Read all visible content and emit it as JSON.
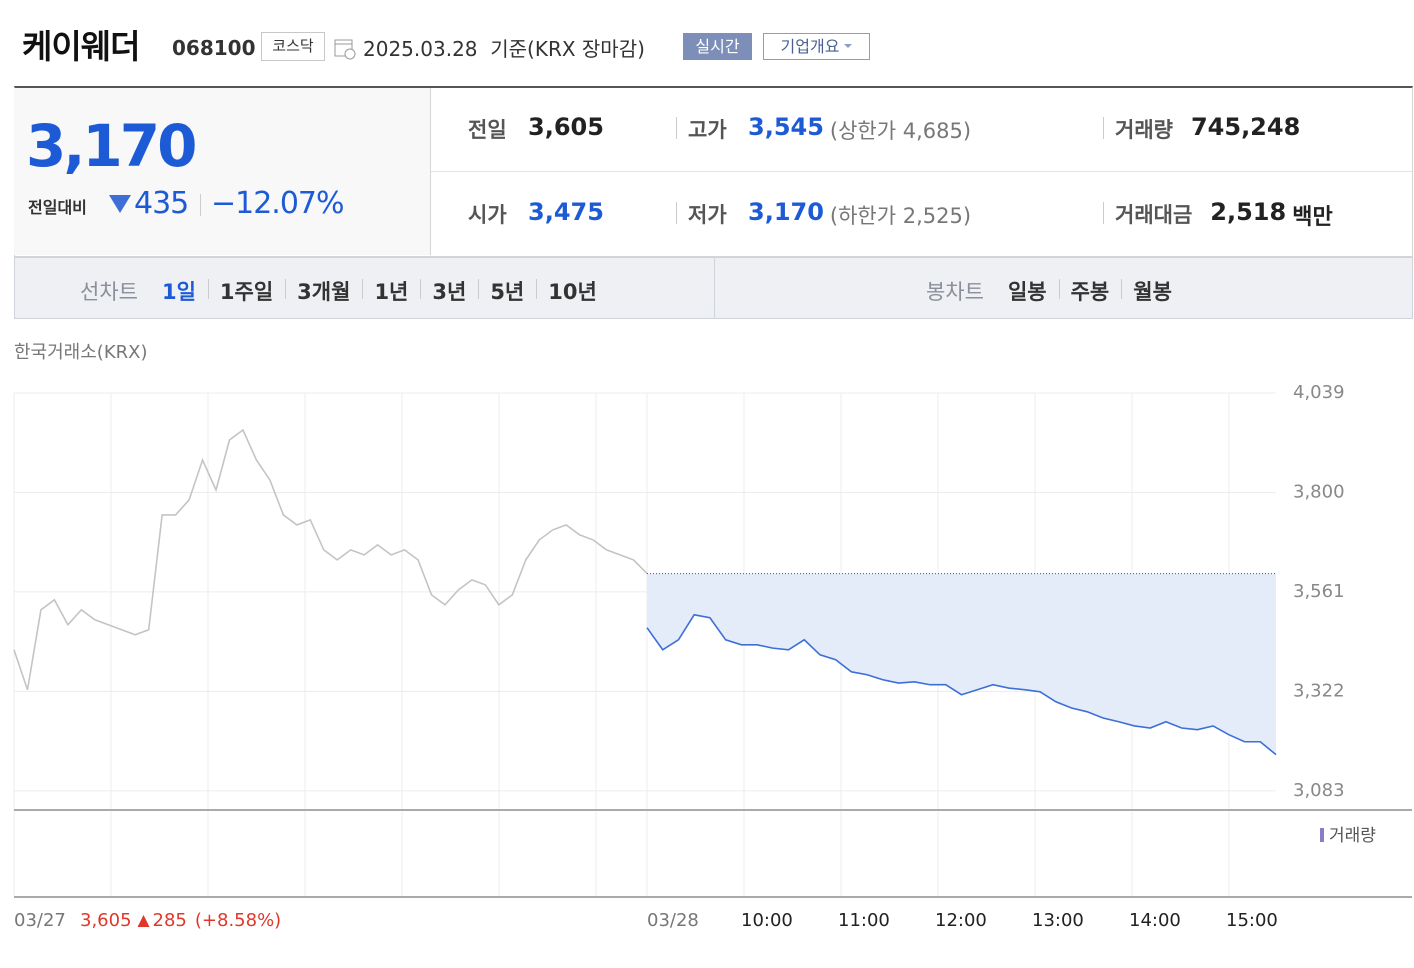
{
  "header": {
    "name": "케이웨더",
    "code": "068100",
    "market": "코스닥",
    "date": "2025.03.28",
    "basis": "기준(KRX 장마감)",
    "realtime": "실시간",
    "company": "기업개요"
  },
  "quote": {
    "price": "3,170",
    "change_label": "전일대비",
    "change": "435",
    "change_pct": "−12.07%",
    "stats": [
      {
        "label": "전일",
        "value": "3,605"
      },
      {
        "label": "고가",
        "value": "3,545",
        "limit": "(상한가 4,685)"
      },
      {
        "label": "거래량",
        "value": "745,248"
      },
      {
        "label": "시가",
        "value": "3,475"
      },
      {
        "label": "저가",
        "value": "3,170",
        "limit": "(하한가 2,525)"
      },
      {
        "label": "거래대금",
        "value": "2,518",
        "unit": "백만"
      }
    ]
  },
  "tabs": {
    "line_label": "선차트",
    "line": [
      "1일",
      "1주일",
      "3개월",
      "1년",
      "3년",
      "5년",
      "10년"
    ],
    "candle_label": "봉차트",
    "candle": [
      "일봉",
      "주봉",
      "월봉"
    ]
  },
  "chart_data": {
    "type": "line",
    "source": "한국거래소(KRX)",
    "volume_label": "거래량",
    "series": [
      {
        "name": "03/27",
        "color": "#c4c4c4",
        "values": [
          3422,
          3326,
          3518,
          3542,
          3482,
          3518,
          3494,
          3482,
          3470,
          3458,
          3470,
          3746,
          3746,
          3782,
          3878,
          3806,
          3926,
          3950,
          3878,
          3830,
          3746,
          3722,
          3734,
          3662,
          3638,
          3662,
          3650,
          3674,
          3650,
          3662,
          3638,
          3554,
          3530,
          3566,
          3590,
          3578,
          3530,
          3554,
          3638,
          3686,
          3710,
          3722,
          3698,
          3686,
          3662,
          3650,
          3638,
          3605
        ]
      },
      {
        "name": "03/28",
        "color": "#3d6fd6",
        "fill_color": "#e4ecfa",
        "values": [
          3475,
          3422,
          3446,
          3506,
          3499,
          3446,
          3434,
          3434,
          3426,
          3422,
          3446,
          3410,
          3398,
          3369,
          3362,
          3350,
          3342,
          3345,
          3338,
          3338,
          3314,
          3326,
          3338,
          3330,
          3326,
          3321,
          3297,
          3282,
          3273,
          3258,
          3249,
          3239,
          3234,
          3249,
          3234,
          3230,
          3239,
          3218,
          3201,
          3201,
          3170
        ]
      }
    ],
    "baseline": 3605,
    "ylim": [
      3037,
      4039
    ],
    "yticks": [
      {
        "value": 3083,
        "label": "3,083"
      },
      {
        "value": 3322,
        "label": "3,322"
      },
      {
        "value": 3561,
        "label": "3,561"
      },
      {
        "value": 3800,
        "label": "3,800"
      },
      {
        "value": 4039,
        "label": "4,039"
      }
    ],
    "xticks": [
      "10:00",
      "11:00",
      "12:00",
      "13:00",
      "14:00",
      "15:00"
    ],
    "prev_summary": {
      "close": "3,605",
      "change": "285",
      "pct": "(+8.58%)"
    },
    "grid": true
  }
}
